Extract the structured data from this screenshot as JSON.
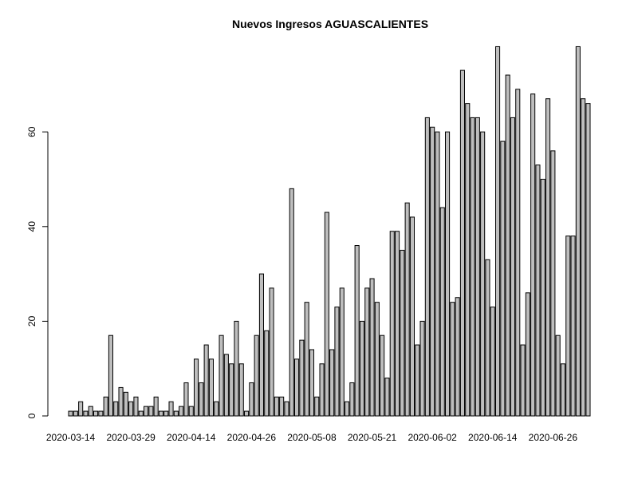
{
  "chart_data": {
    "type": "bar",
    "title": "Nuevos Ingresos AGUASCALIENTES",
    "xlabel": "",
    "ylabel": "",
    "ylim": [
      0,
      78
    ],
    "yticks": [
      0,
      20,
      40,
      60
    ],
    "xtick_labels": [
      "2020-03-14",
      "2020-03-29",
      "2020-04-14",
      "2020-04-26",
      "2020-05-08",
      "2020-05-21",
      "2020-06-02",
      "2020-06-14",
      "2020-06-26"
    ],
    "xtick_bar_index": [
      0,
      12,
      24,
      36,
      48,
      60,
      72,
      84,
      96
    ],
    "bar_color": "#bebebe",
    "values": [
      1,
      1,
      3,
      1,
      2,
      1,
      1,
      4,
      17,
      3,
      6,
      5,
      3,
      4,
      1,
      2,
      2,
      4,
      1,
      1,
      3,
      1,
      2,
      7,
      2,
      12,
      7,
      15,
      12,
      3,
      17,
      13,
      11,
      20,
      11,
      1,
      7,
      17,
      30,
      18,
      27,
      4,
      4,
      3,
      48,
      12,
      16,
      24,
      14,
      4,
      11,
      43,
      14,
      23,
      27,
      3,
      7,
      36,
      20,
      27,
      29,
      24,
      17,
      8,
      39,
      39,
      35,
      45,
      42,
      15,
      20,
      63,
      61,
      60,
      44,
      60,
      24,
      25,
      73,
      66,
      63,
      63,
      60,
      33,
      23,
      78,
      58,
      72,
      63,
      69,
      15,
      26,
      68,
      53,
      50,
      67,
      56,
      17,
      11,
      38,
      38,
      78,
      67,
      66
    ]
  }
}
